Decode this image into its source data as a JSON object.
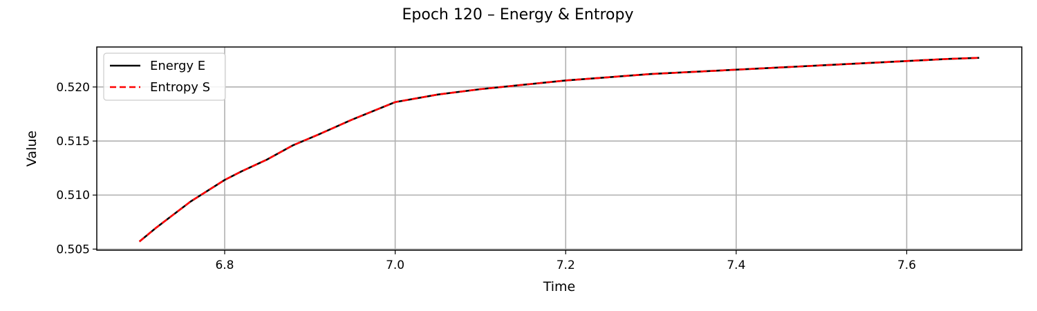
{
  "chart_data": {
    "type": "line",
    "title": "Epoch 120 – Energy & Entropy",
    "xlabel": "Time",
    "ylabel": "Value",
    "xlim": [
      6.65,
      7.735
    ],
    "ylim": [
      0.5049,
      0.5237
    ],
    "xticks": [
      6.8,
      7.0,
      7.2,
      7.4,
      7.6
    ],
    "xtick_labels": [
      "6.8",
      "7.0",
      "7.2",
      "7.4",
      "7.6"
    ],
    "yticks": [
      0.505,
      0.51,
      0.515,
      0.52
    ],
    "ytick_labels": [
      "0.505",
      "0.510",
      "0.515",
      "0.520"
    ],
    "grid": true,
    "legend_position": "upper-left",
    "x": [
      6.7,
      6.72,
      6.74,
      6.76,
      6.78,
      6.8,
      6.82,
      6.85,
      6.88,
      6.91,
      6.95,
      7.0,
      7.05,
      7.1,
      7.15,
      7.2,
      7.25,
      7.3,
      7.35,
      7.4,
      7.45,
      7.5,
      7.55,
      7.6,
      7.65,
      7.685
    ],
    "series": [
      {
        "name": "Energy E",
        "color": "#000000",
        "dash": "solid",
        "values": [
          0.5057,
          0.507,
          0.5082,
          0.5094,
          0.5104,
          0.5114,
          0.5122,
          0.5133,
          0.5146,
          0.5156,
          0.517,
          0.5186,
          0.5193,
          0.5198,
          0.5202,
          0.5206,
          0.5209,
          0.5212,
          0.5214,
          0.5216,
          0.5218,
          0.522,
          0.5222,
          0.5224,
          0.5226,
          0.5227
        ]
      },
      {
        "name": "Entropy S",
        "color": "#ff0000",
        "dash": "dashed",
        "values": [
          0.5057,
          0.507,
          0.5082,
          0.5094,
          0.5104,
          0.5114,
          0.5122,
          0.5133,
          0.5146,
          0.5156,
          0.517,
          0.5186,
          0.5193,
          0.5198,
          0.5202,
          0.5206,
          0.5209,
          0.5212,
          0.5214,
          0.5216,
          0.5218,
          0.522,
          0.5222,
          0.5224,
          0.5226,
          0.5227
        ]
      }
    ]
  }
}
